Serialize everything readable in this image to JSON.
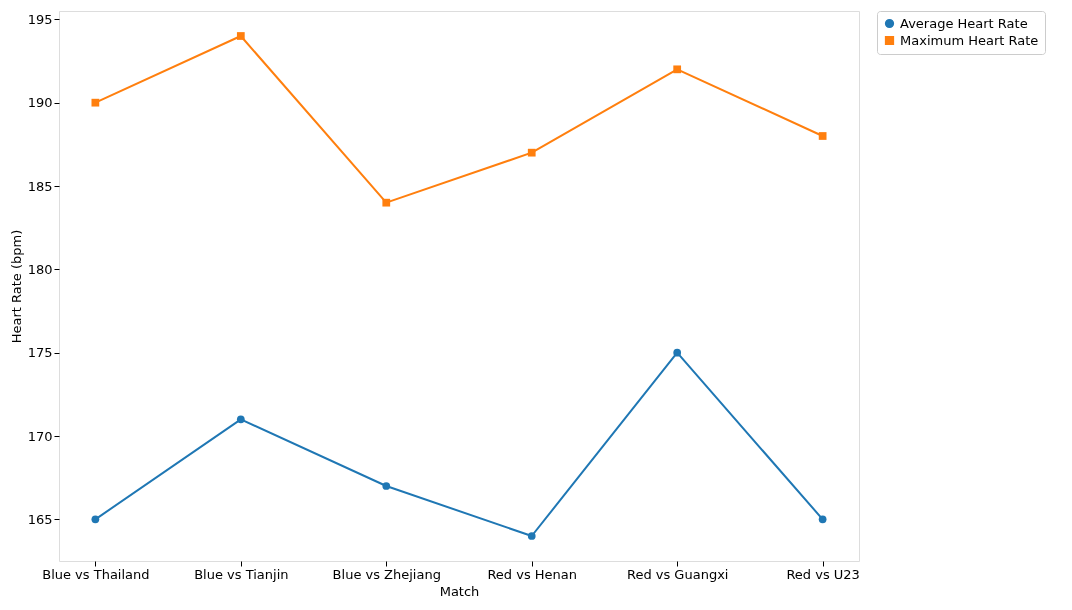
{
  "chart_data": {
    "type": "line",
    "xlabel": "Match",
    "ylabel": "Heart Rate (bpm)",
    "categories": [
      "Blue vs Thailand",
      "Blue vs Tianjin",
      "Blue vs Zhejiang",
      "Red vs Henan",
      "Red vs Guangxi",
      "Red vs U23"
    ],
    "series": [
      {
        "name": "Average Heart Rate",
        "color": "#1f77b4",
        "marker": "circle",
        "values": [
          165,
          171,
          167,
          164,
          175,
          165
        ]
      },
      {
        "name": "Maximum Heart Rate",
        "color": "#ff7f0e",
        "marker": "square",
        "values": [
          190,
          194,
          184,
          187,
          192,
          188
        ]
      }
    ],
    "ylim": [
      162.5,
      195.5
    ],
    "yticks": [
      165,
      170,
      175,
      180,
      185,
      190,
      195
    ],
    "grid": false,
    "legend": "top right",
    "line_style": "solid"
  }
}
